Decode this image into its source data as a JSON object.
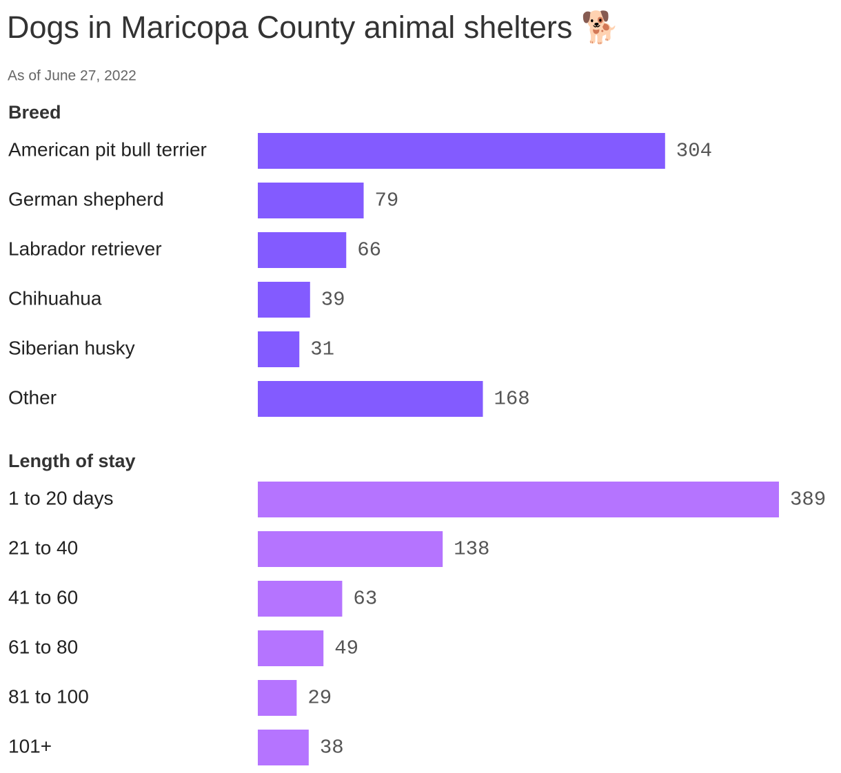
{
  "header": {
    "title": "Dogs in Maricopa County animal shelters 🐕",
    "subtitle": "As of June 27, 2022"
  },
  "chart_data": [
    {
      "type": "bar",
      "title": "Breed",
      "color": "#835bff",
      "categories": [
        "American pit bull terrier",
        "German shepherd",
        "Labrador retriever",
        "Chihuahua",
        "Siberian husky",
        "Other"
      ],
      "values": [
        304,
        79,
        66,
        39,
        31,
        168
      ]
    },
    {
      "type": "bar",
      "title": "Length of stay",
      "color": "#b574ff",
      "categories": [
        "1 to 20 days",
        "21 to 40",
        "41 to 60",
        "61 to 80",
        "81 to 100",
        "101+"
      ],
      "values": [
        389,
        138,
        63,
        49,
        29,
        38
      ]
    }
  ]
}
